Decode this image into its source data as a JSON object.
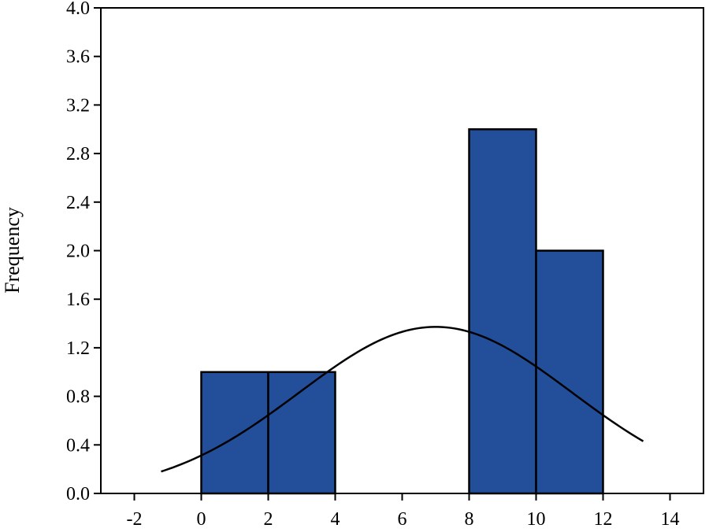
{
  "chart_data": {
    "type": "bar",
    "title": "",
    "xlabel": "",
    "ylabel": "Frequency",
    "xlim": [
      -3,
      15
    ],
    "ylim": [
      0,
      4.0
    ],
    "x_ticks": [
      -2,
      0,
      2,
      4,
      6,
      8,
      10,
      12,
      14
    ],
    "y_ticks": [
      "0.0",
      "0.4",
      "0.8",
      "1.2",
      "1.6",
      "2.0",
      "2.4",
      "2.8",
      "3.2",
      "3.6",
      "4.0"
    ],
    "grid": false,
    "legend": "none",
    "bar_color": "#234e9a",
    "bar_outline_color": "#000000",
    "bins": [
      {
        "x0": 0,
        "x1": 2,
        "value": 1
      },
      {
        "x0": 2,
        "x1": 4,
        "value": 1
      },
      {
        "x0": 8,
        "x1": 10,
        "value": 3
      },
      {
        "x0": 10,
        "x1": 12,
        "value": 2
      }
    ],
    "normal_curve": {
      "mean": 7.0,
      "std": 4.07,
      "n": 7,
      "bin_width": 2,
      "x_range": [
        -1.2,
        13.2
      ],
      "color": "#000000"
    }
  }
}
